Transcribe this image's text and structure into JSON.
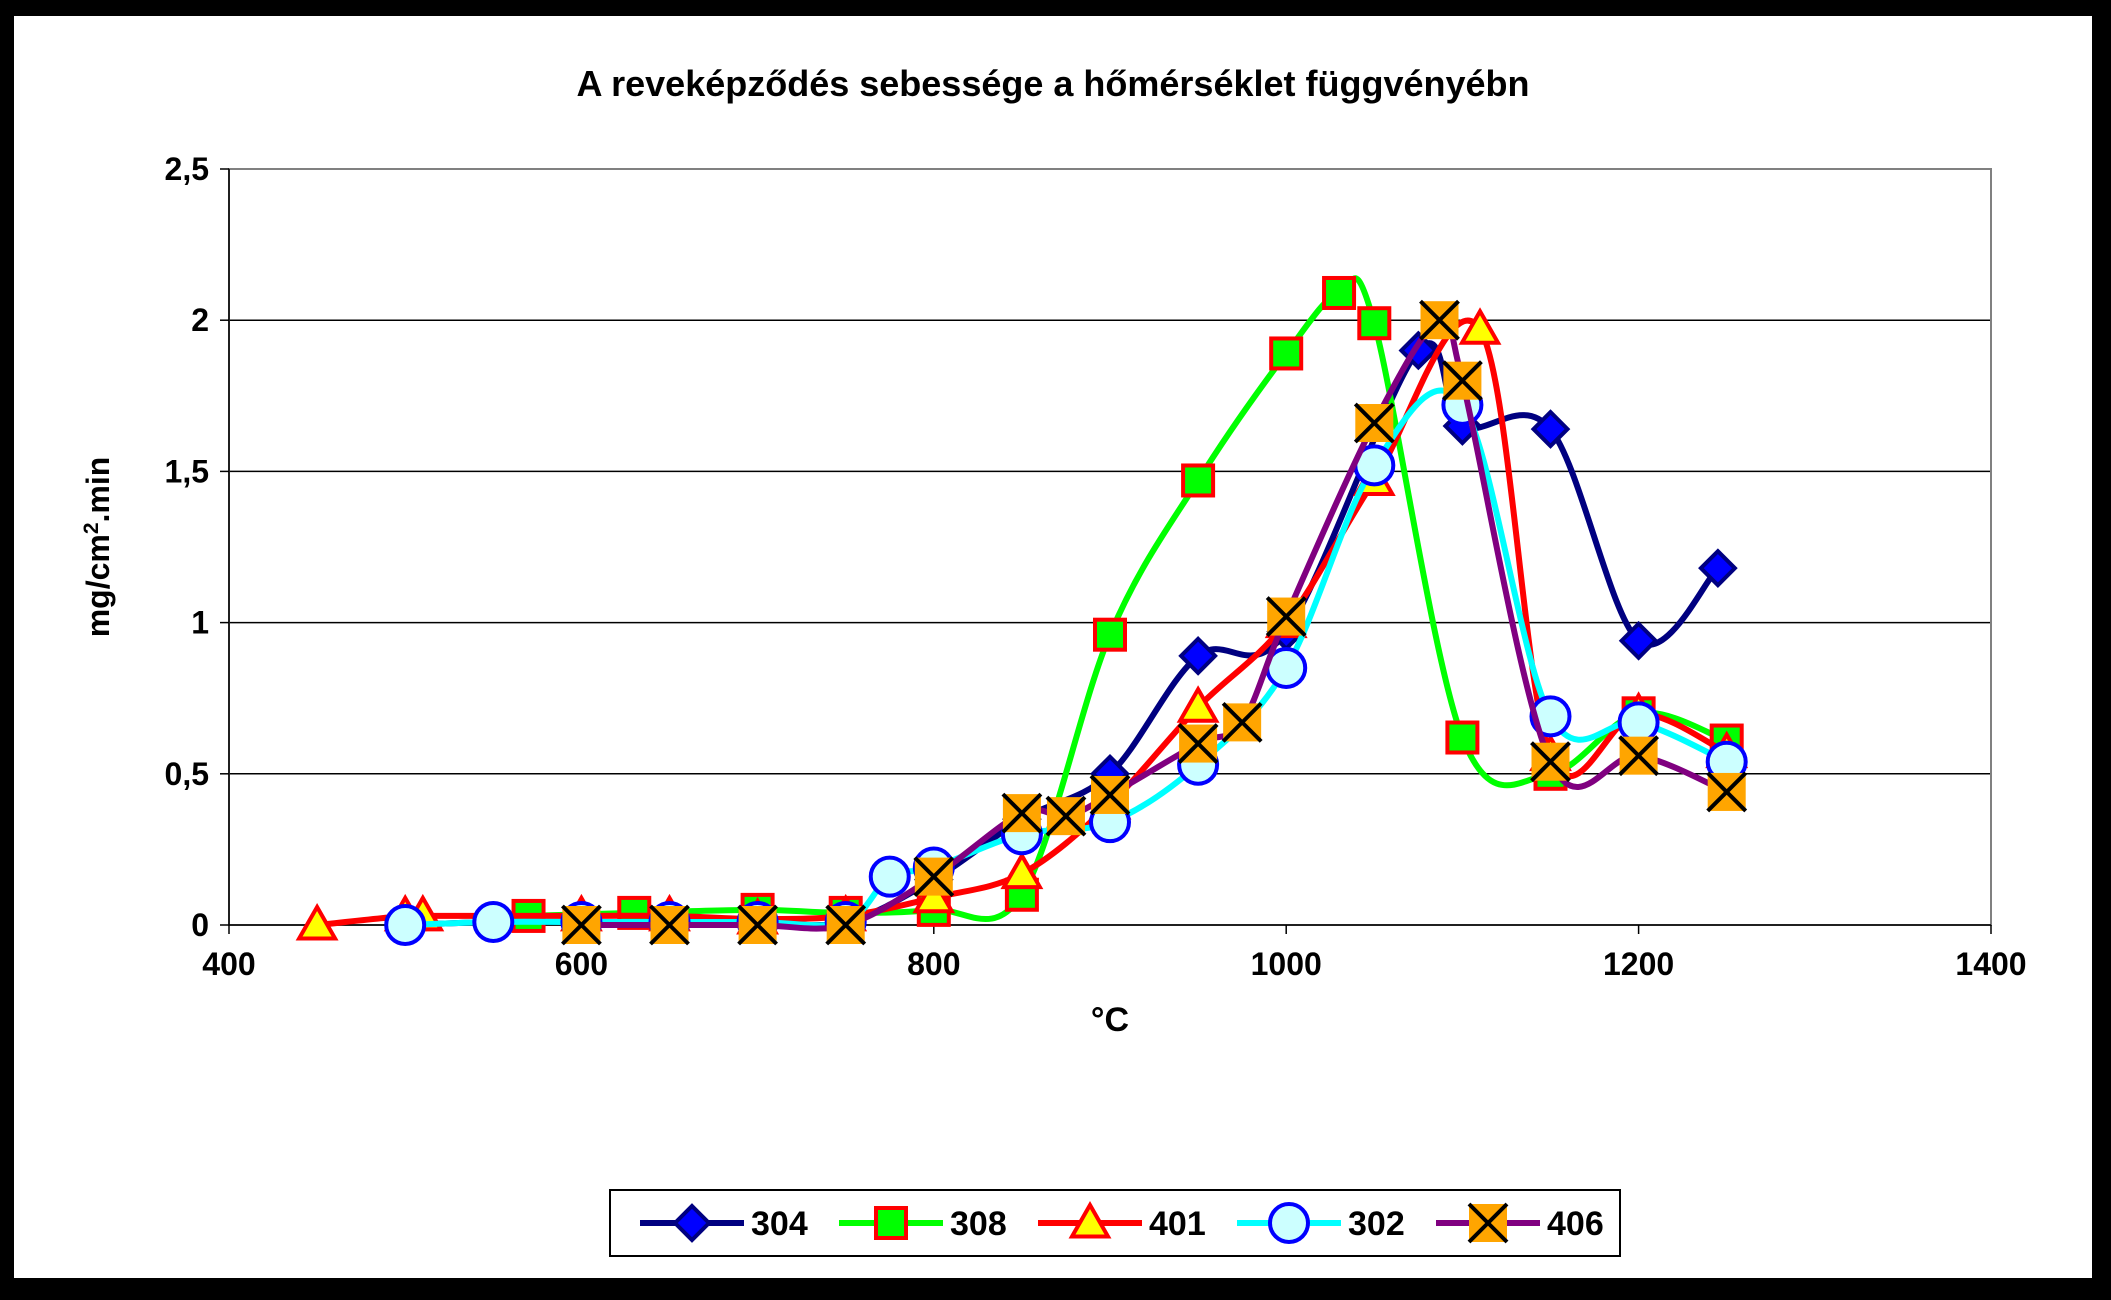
{
  "chart_data": {
    "type": "line",
    "title": "A reveképződés sebessége a hőmérséklet függvényébn",
    "xlabel": "°C",
    "ylabel_base": "mg/cm",
    "ylabel_sup": "2",
    "ylabel_tail": ".min",
    "xlim": [
      400,
      1400
    ],
    "ylim": [
      0,
      2.5
    ],
    "x_ticks": [
      400,
      600,
      800,
      1000,
      1200,
      1400
    ],
    "x_tick_labels": [
      "400",
      "600",
      "800",
      "1000",
      "1200",
      "1400"
    ],
    "y_ticks": [
      0,
      0.5,
      1,
      1.5,
      2,
      2.5
    ],
    "y_tick_labels": [
      "0",
      "0,5",
      "1",
      "1,5",
      "2",
      "2,5"
    ],
    "grid": "horizontal",
    "legend_position": "bottom",
    "series": [
      {
        "name": "304",
        "line_color": "#000080",
        "marker": "diamond",
        "marker_fill": "#0000ff",
        "marker_stroke": "#000080",
        "points": [
          [
            500,
            0
          ],
          [
            550,
            0.01
          ],
          [
            600,
            0.01
          ],
          [
            650,
            0.01
          ],
          [
            700,
            0.01
          ],
          [
            750,
            0.01
          ],
          [
            800,
            0.15
          ],
          [
            850,
            0.35
          ],
          [
            900,
            0.5
          ],
          [
            950,
            0.89
          ],
          [
            1000,
            0.97
          ],
          [
            1075,
            1.9
          ],
          [
            1100,
            1.65
          ],
          [
            1150,
            1.64
          ],
          [
            1200,
            0.94
          ],
          [
            1245,
            1.18
          ]
        ]
      },
      {
        "name": "308",
        "line_color": "#00ff00",
        "marker": "square",
        "marker_fill": "#00ff00",
        "marker_stroke": "#ff0000",
        "points": [
          [
            570,
            0.03
          ],
          [
            630,
            0.04
          ],
          [
            700,
            0.05
          ],
          [
            750,
            0.04
          ],
          [
            800,
            0.05
          ],
          [
            850,
            0.1
          ],
          [
            900,
            0.96
          ],
          [
            950,
            1.47
          ],
          [
            1000,
            1.89
          ],
          [
            1030,
            2.09
          ],
          [
            1050,
            1.99
          ],
          [
            1100,
            0.62
          ],
          [
            1150,
            0.5
          ],
          [
            1200,
            0.7
          ],
          [
            1250,
            0.61
          ]
        ]
      },
      {
        "name": "401",
        "line_color": "#ff0000",
        "marker": "triangle",
        "marker_fill": "#ffff00",
        "marker_stroke": "#ff0000",
        "points": [
          [
            450,
            0
          ],
          [
            500,
            0.03
          ],
          [
            510,
            0.03
          ],
          [
            600,
            0.03
          ],
          [
            650,
            0.03
          ],
          [
            700,
            0.02
          ],
          [
            750,
            0.03
          ],
          [
            800,
            0.09
          ],
          [
            850,
            0.17
          ],
          [
            900,
            0.4
          ],
          [
            950,
            0.72
          ],
          [
            1000,
            1.0
          ],
          [
            1050,
            1.47
          ],
          [
            1110,
            1.97
          ],
          [
            1150,
            0.56
          ],
          [
            1200,
            0.7
          ],
          [
            1250,
            0.57
          ]
        ]
      },
      {
        "name": "302",
        "line_color": "#00ffff",
        "marker": "circle",
        "marker_fill": "#ccffff",
        "marker_stroke": "#0000ff",
        "points": [
          [
            500,
            0
          ],
          [
            550,
            0.01
          ],
          [
            600,
            0.01
          ],
          [
            650,
            0.01
          ],
          [
            700,
            0.01
          ],
          [
            750,
            0.01
          ],
          [
            775,
            0.16
          ],
          [
            800,
            0.19
          ],
          [
            850,
            0.3
          ],
          [
            900,
            0.34
          ],
          [
            950,
            0.53
          ],
          [
            1000,
            0.85
          ],
          [
            1050,
            1.52
          ],
          [
            1100,
            1.72
          ],
          [
            1150,
            0.69
          ],
          [
            1200,
            0.67
          ],
          [
            1250,
            0.54
          ]
        ]
      },
      {
        "name": "406",
        "line_color": "#800080",
        "marker": "x",
        "marker_fill": "#ffa500",
        "marker_stroke": "#000000",
        "points": [
          [
            600,
            0
          ],
          [
            650,
            0
          ],
          [
            700,
            0
          ],
          [
            750,
            0
          ],
          [
            800,
            0.16
          ],
          [
            850,
            0.37
          ],
          [
            875,
            0.36
          ],
          [
            900,
            0.43
          ],
          [
            950,
            0.6
          ],
          [
            975,
            0.67
          ],
          [
            1000,
            1.02
          ],
          [
            1050,
            1.66
          ],
          [
            1087,
            2.0
          ],
          [
            1100,
            1.8
          ],
          [
            1150,
            0.54
          ],
          [
            1200,
            0.56
          ],
          [
            1250,
            0.44
          ]
        ]
      }
    ]
  }
}
